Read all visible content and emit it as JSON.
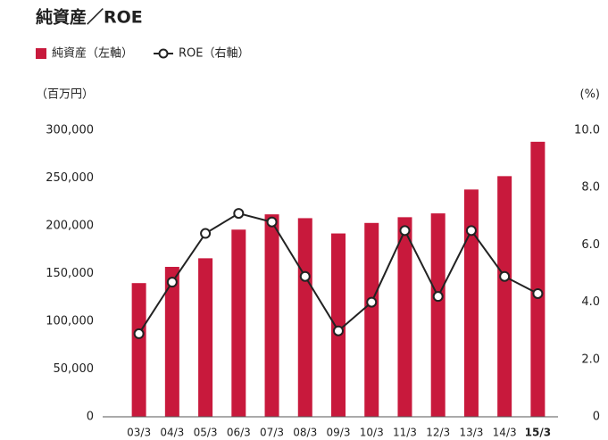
{
  "chart_data": {
    "type": "bar_line",
    "title": "純資産／ROE",
    "y_label": "（百万円）",
    "y2_label": "(%)",
    "categories": [
      "03/3",
      "04/3",
      "05/3",
      "06/3",
      "07/3",
      "08/3",
      "09/3",
      "10/3",
      "11/3",
      "12/3",
      "13/3",
      "14/3",
      "15/3"
    ],
    "series": [
      {
        "name": "純資産（左軸）",
        "color": "#c8193c",
        "type": "bar",
        "axis": "y",
        "values": [
          140000,
          157000,
          166000,
          196000,
          212000,
          208000,
          192000,
          203000,
          209000,
          213000,
          238000,
          252000,
          288000
        ]
      },
      {
        "name": "ROE（右軸）",
        "color": "#222222",
        "type": "line",
        "axis": "y2",
        "values": [
          2.9,
          4.7,
          6.4,
          7.1,
          6.8,
          4.9,
          3.0,
          4.0,
          6.5,
          4.2,
          6.5,
          4.9,
          4.3
        ]
      }
    ],
    "ylim": [
      0,
      300000
    ],
    "yticks": [
      0,
      {
        "value": 50000,
        "label": "50,000"
      },
      {
        "value": 100000,
        "label": "100,000"
      },
      {
        "value": 150000,
        "label": "150,000"
      },
      {
        "value": 200000,
        "label": "200,000"
      },
      {
        "value": 250000,
        "label": "250,000"
      },
      {
        "value": 300000,
        "label": "300,000"
      }
    ],
    "y2lim": [
      0,
      10
    ],
    "y2ticks": [
      0,
      {
        "value": 2,
        "label": "2.0"
      },
      {
        "value": 4,
        "label": "4.0"
      },
      {
        "value": 6,
        "label": "6.0"
      },
      {
        "value": 8,
        "label": "8.0"
      },
      {
        "value": 10,
        "label": "10.0"
      }
    ],
    "grid": false
  }
}
